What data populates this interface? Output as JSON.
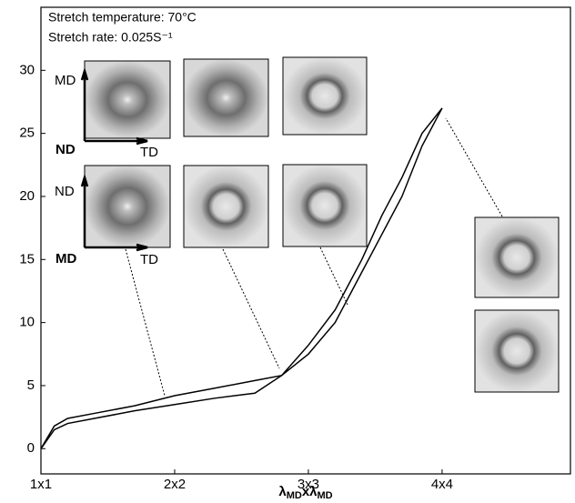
{
  "chart_data": {
    "type": "line",
    "annotations": [
      "Stretch temperature: 70°C",
      "Stretch rate: 0.025S⁻¹"
    ],
    "x_label_parts": [
      "λ",
      "MD",
      "x",
      "λ",
      "MD"
    ],
    "inset_axis_labels": [
      [
        "MD",
        "ND",
        "TD"
      ],
      [
        "ND",
        "MD",
        "TD"
      ]
    ],
    "xlim": [
      1,
      4.96
    ],
    "xticks": [
      {
        "value": 1,
        "label": "1x1"
      },
      {
        "value": 2,
        "label": "2x2"
      },
      {
        "value": 3,
        "label": "3x3"
      },
      {
        "value": 4,
        "label": "4x4"
      }
    ],
    "ylim": [
      -2,
      35
    ],
    "yticks": [
      0,
      5,
      10,
      15,
      20,
      25,
      30
    ],
    "x": [
      1,
      1.1,
      1.2,
      1.4,
      1.7,
      2.0,
      2.3,
      2.6,
      2.8,
      3.0,
      3.2,
      3.4,
      3.55,
      3.7,
      3.85,
      4.0
    ],
    "series": [
      {
        "color": "#000000",
        "values": [
          0,
          1.8,
          2.4,
          2.8,
          3.4,
          4.2,
          4.8,
          5.4,
          5.8,
          7.5,
          10,
          14,
          17,
          20,
          24,
          27
        ]
      },
      {
        "color": "#000000",
        "values": [
          0,
          1.5,
          2.0,
          2.4,
          3.0,
          3.5,
          4.0,
          4.4,
          5.8,
          8.2,
          11,
          15,
          18.5,
          21.5,
          25,
          27
        ]
      }
    ]
  }
}
